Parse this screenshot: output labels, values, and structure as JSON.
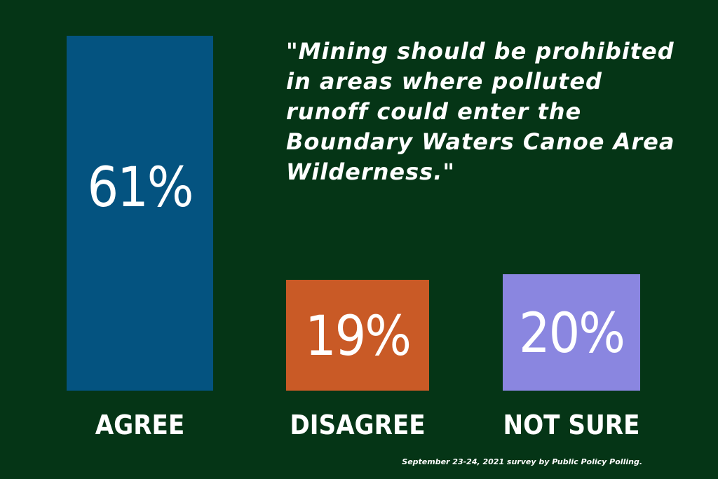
{
  "quote": "\"Mining should be prohibited in areas where polluted runoff could enter the Boundary Waters Canoe Area Wilderness.\"",
  "source": "September 23-24, 2021 survey by Public Policy Polling.",
  "colors": {
    "background": "#053516",
    "agree": "#045380",
    "disagree": "#c95a26",
    "not_sure": "#8a86e0",
    "text": "#ffffff"
  },
  "chart_data": {
    "type": "bar",
    "categories": [
      "AGREE",
      "DISAGREE",
      "NOT SURE"
    ],
    "values": [
      61,
      19,
      20
    ],
    "value_labels": [
      "61%",
      "19%",
      "20%"
    ],
    "ylim": [
      0,
      61
    ],
    "title": "",
    "xlabel": "",
    "ylabel": "",
    "grid": false
  }
}
